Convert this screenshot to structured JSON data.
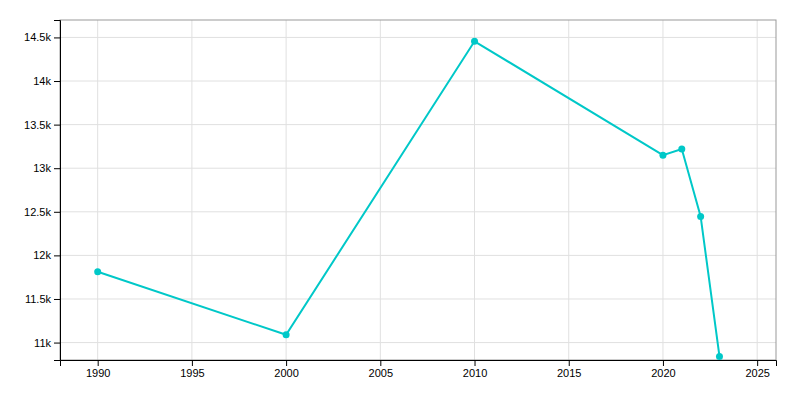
{
  "chart_data": {
    "type": "line",
    "x": [
      1990,
      2000,
      2010,
      2020,
      2021,
      2022,
      2023
    ],
    "values": [
      11812,
      11089,
      14456,
      13149,
      13221,
      12447,
      10841
    ],
    "color": "#00C8C8",
    "marker": "circle",
    "xlim": [
      1988,
      2026
    ],
    "ylim": [
      10800,
      14700
    ],
    "xticks": [
      1990,
      1995,
      2000,
      2005,
      2010,
      2015,
      2020,
      2025
    ],
    "yticks": [
      {
        "value": 11000,
        "label": "11k"
      },
      {
        "value": 11500,
        "label": "11.5k"
      },
      {
        "value": 12000,
        "label": "12k"
      },
      {
        "value": 12500,
        "label": "12.5k"
      },
      {
        "value": 13000,
        "label": "13k"
      },
      {
        "value": 13500,
        "label": "13.5k"
      },
      {
        "value": 14000,
        "label": "14k"
      },
      {
        "value": 14500,
        "label": "14.5k"
      }
    ],
    "grid": true
  }
}
